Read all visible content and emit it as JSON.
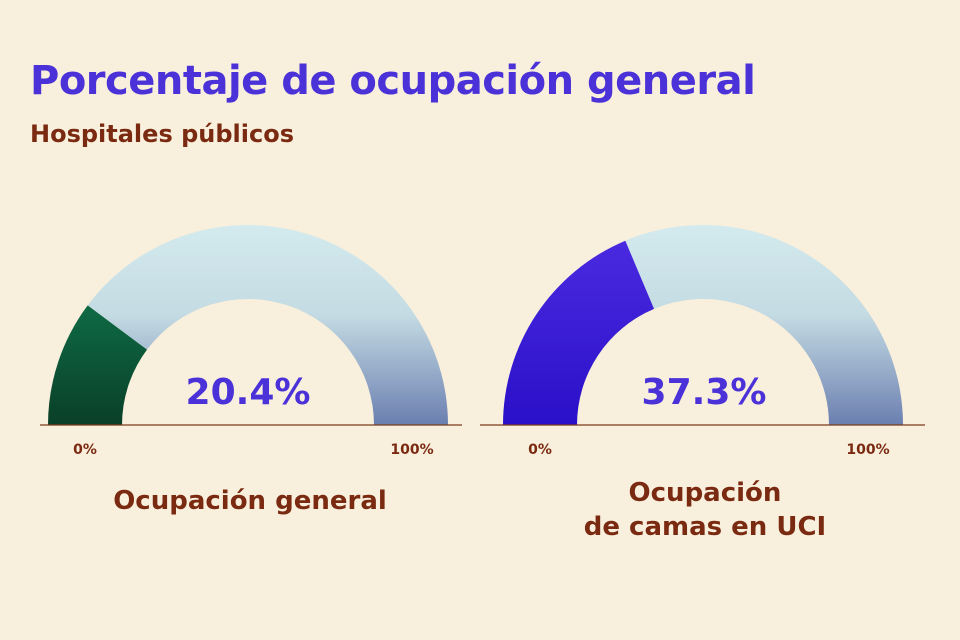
{
  "header": {
    "title": "Porcentaje de ocupación general",
    "subtitle": "Hospitales públicos"
  },
  "colors": {
    "background": "#f8efdc",
    "title": "#4a32d8",
    "subtitle": "#7a2a10",
    "gauge1_fill": "#0e5a3a",
    "gauge2_fill": "#3a1ad6",
    "track_top": "#d3eaee",
    "track_bottom": "#6b7fb0",
    "value_text": "#4a32d8"
  },
  "chart_data": [
    {
      "type": "gauge",
      "value": 20.4,
      "value_label": "20.4%",
      "min": 0,
      "max": 100,
      "min_label": "0%",
      "max_label": "100%",
      "label": "Ocupación general"
    },
    {
      "type": "gauge",
      "value": 37.3,
      "value_label": "37.3%",
      "min": 0,
      "max": 100,
      "min_label": "0%",
      "max_label": "100%",
      "label_lines": [
        "Ocupación",
        "de camas en UCI"
      ]
    }
  ]
}
